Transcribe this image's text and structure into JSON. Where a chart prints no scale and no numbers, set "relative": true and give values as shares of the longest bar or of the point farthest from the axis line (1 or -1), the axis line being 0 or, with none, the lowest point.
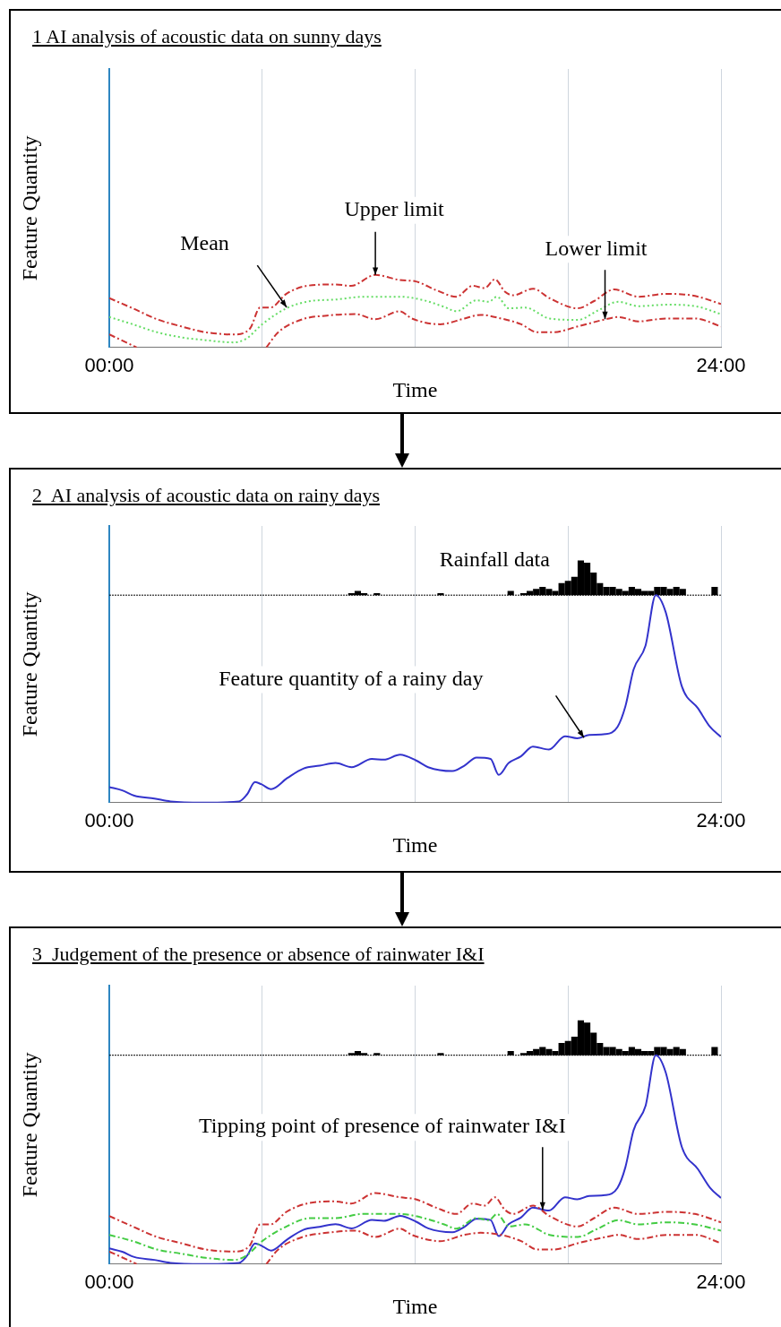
{
  "chart_data": [
    {
      "type": "line",
      "title": "1 AI analysis of acoustic data on sunny days",
      "xlabel": "Time",
      "ylabel": "Feature Quantity",
      "relative": true,
      "xlim": [
        0,
        24
      ],
      "xticks": [
        {
          "value": 0,
          "label": "00:00"
        },
        {
          "value": 6,
          "label": null
        },
        {
          "value": 12,
          "label": null
        },
        {
          "value": 18,
          "label": null
        },
        {
          "value": 24,
          "label": "24:00"
        }
      ],
      "grid": "x",
      "marker": "none",
      "annotations": [
        "Mean",
        {
          "text": "Upper limit",
          "x": 10.44,
          "y": 1.0
        },
        {
          "text": "Lower limit",
          "x": 19.45,
          "y": 0.39
        }
      ],
      "series": [
        {
          "color": "#cc3333",
          "line_style": "dashed",
          "x": [
            0,
            0.92,
            1.87,
            2.83,
            3.78,
            4.89,
            5.52,
            5.92,
            6.32,
            6.95,
            7.75,
            8.86,
            9.49,
            10.44,
            11.4,
            12.03,
            12.83,
            13.62,
            14.25,
            14.73,
            15.13,
            15.52,
            15.84,
            16.63,
            17.27,
            18.38,
            19.02,
            19.81,
            20.76,
            21.87,
            22.98,
            24
          ],
          "values": [
            0.68,
            0.54,
            0.39,
            0.29,
            0.21,
            0.18,
            0.26,
            0.55,
            0.55,
            0.74,
            0.85,
            0.87,
            0.85,
            1.0,
            0.93,
            0.91,
            0.79,
            0.7,
            0.85,
            0.82,
            0.94,
            0.77,
            0.72,
            0.81,
            0.68,
            0.54,
            0.64,
            0.8,
            0.7,
            0.74,
            0.71,
            0.6
          ]
        },
        {
          "color": "#66dd66",
          "line_style": "dotted",
          "x": [
            0,
            0.92,
            1.87,
            2.83,
            3.78,
            4.89,
            5.37,
            6.0,
            6.95,
            7.9,
            8.86,
            9.97,
            11.4,
            12.35,
            13.14,
            13.62,
            14.41,
            14.89,
            15.21,
            15.68,
            16.32,
            17.27,
            18.38,
            19.17,
            19.97,
            20.76,
            21.87,
            22.98,
            24
          ],
          "values": [
            0.42,
            0.32,
            0.21,
            0.14,
            0.1,
            0.07,
            0.12,
            0.32,
            0.54,
            0.64,
            0.66,
            0.7,
            0.7,
            0.65,
            0.56,
            0.5,
            0.65,
            0.63,
            0.7,
            0.54,
            0.55,
            0.4,
            0.38,
            0.51,
            0.63,
            0.57,
            0.59,
            0.57,
            0.46
          ]
        },
        {
          "color": "#cc3333",
          "line_style": "dashed",
          "x": [
            0,
            1.08,
            3.5,
            6.16,
            6.63,
            7.59,
            8.54,
            9.65,
            10.44,
            11.4,
            11.87,
            12.98,
            13.94,
            14.57,
            15.37,
            16.16,
            16.79,
            17.43,
            18.38,
            19.49,
            19.97,
            20.76,
            21.87,
            22.98,
            24
          ],
          "values": [
            0.18,
            0,
            null,
            0,
            0.21,
            0.39,
            0.44,
            0.46,
            0.39,
            0.5,
            0.4,
            0.32,
            0.4,
            0.45,
            0.4,
            0.32,
            0.21,
            0.21,
            0.29,
            0.39,
            0.42,
            0.36,
            0.4,
            0.4,
            0.29
          ]
        }
      ]
    },
    {
      "type": "line",
      "title": "2  AI analysis of acoustic data on rainy days",
      "xlabel": "Time",
      "ylabel": "Feature Quantity",
      "relative": true,
      "xlim": [
        0,
        24
      ],
      "xticks": [
        {
          "value": 0,
          "label": "00:00"
        },
        {
          "value": 6,
          "label": null
        },
        {
          "value": 12,
          "label": null
        },
        {
          "value": 18,
          "label": null
        },
        {
          "value": 24,
          "label": "24:00"
        }
      ],
      "grid": "x",
      "marker": "none",
      "annotations": [
        "Rainfall data",
        "Feature quantity of a rainy day"
      ],
      "series": [
        {
          "type": "bar",
          "axis": "y2",
          "color": "#000000",
          "x": [
            9.5,
            9.75,
            10,
            10.5,
            13,
            15.75,
            16.25,
            16.5,
            16.75,
            17,
            17.25,
            17.5,
            17.75,
            18,
            18.25,
            18.5,
            18.75,
            19,
            19.25,
            19.5,
            19.75,
            20,
            20.25,
            20.5,
            20.75,
            21,
            21.25,
            21.5,
            21.75,
            22,
            22.25,
            22.5,
            23.75
          ],
          "values": [
            0.06,
            0.12,
            0.06,
            0.06,
            0.06,
            0.12,
            0.06,
            0.12,
            0.18,
            0.24,
            0.18,
            0.12,
            0.35,
            0.41,
            0.53,
            1.0,
            0.94,
            0.65,
            0.35,
            0.24,
            0.24,
            0.18,
            0.12,
            0.24,
            0.18,
            0.12,
            0.12,
            0.24,
            0.24,
            0.18,
            0.24,
            0.18,
            0.24
          ]
        },
        {
          "color": "#3333cc",
          "line_style": "solid",
          "x": [
            0,
            0.51,
            0.98,
            1.77,
            2.4,
            3.67,
            5.09,
            5.4,
            5.72,
            5.96,
            6.35,
            6.98,
            7.61,
            8.25,
            8.88,
            9.51,
            10.3,
            10.77,
            11.41,
            12.04,
            12.51,
            13.46,
            13.93,
            14.41,
            14.96,
            15.28,
            15.67,
            16.15,
            16.62,
            17.25,
            17.88,
            18.36,
            18.83,
            19.46,
            19.94,
            20.25,
            20.57,
            21.04,
            21.44,
            21.83,
            22.46,
            23.1,
            23.57,
            24
          ],
          "values": [
            0.075,
            0.059,
            0.034,
            0.02,
            0.006,
            0,
            0.006,
            0.039,
            0.099,
            0.089,
            0.065,
            0.118,
            0.164,
            0.178,
            0.191,
            0.171,
            0.211,
            0.207,
            0.231,
            0.203,
            0.171,
            0.152,
            0.178,
            0.217,
            0.211,
            0.134,
            0.191,
            0.223,
            0.27,
            0.256,
            0.32,
            0.31,
            0.326,
            0.33,
            0.365,
            0.464,
            0.641,
            0.757,
            1.0,
            0.918,
            0.562,
            0.454,
            0.365,
            0.316
          ]
        }
      ]
    },
    {
      "type": "line",
      "title": "3  Judgement of the presence or absence of rainwater I&I",
      "xlabel": "Time",
      "ylabel": "Feature Quantity",
      "relative": true,
      "xlim": [
        0,
        24
      ],
      "xticks": [
        {
          "value": 0,
          "label": "00:00"
        },
        {
          "value": 6,
          "label": null
        },
        {
          "value": 12,
          "label": null
        },
        {
          "value": 18,
          "label": null
        },
        {
          "value": 24,
          "label": "24:00"
        }
      ],
      "grid": "x",
      "marker": "none",
      "annotations": [
        {
          "text": "Tipping point of presence of rainwater I&I",
          "x": 17.0,
          "y": 0.26
        }
      ],
      "series": [
        {
          "type": "bar",
          "axis": "y2",
          "color": "#000000",
          "x": [
            9.5,
            9.75,
            10,
            10.5,
            13,
            15.75,
            16.25,
            16.5,
            16.75,
            17,
            17.25,
            17.5,
            17.75,
            18,
            18.25,
            18.5,
            18.75,
            19,
            19.25,
            19.5,
            19.75,
            20,
            20.25,
            20.5,
            20.75,
            21,
            21.25,
            21.5,
            21.75,
            22,
            22.25,
            22.5,
            23.75
          ],
          "values": [
            0.06,
            0.12,
            0.06,
            0.06,
            0.06,
            0.12,
            0.06,
            0.12,
            0.18,
            0.24,
            0.18,
            0.12,
            0.35,
            0.41,
            0.53,
            1.0,
            0.94,
            0.65,
            0.35,
            0.24,
            0.24,
            0.18,
            0.12,
            0.24,
            0.18,
            0.12,
            0.12,
            0.24,
            0.24,
            0.18,
            0.24,
            0.18,
            0.24
          ]
        },
        {
          "color": "#cc3333",
          "line_style": "dashed",
          "x": [
            0,
            0.92,
            1.87,
            2.83,
            3.78,
            4.89,
            5.52,
            5.92,
            6.32,
            6.95,
            7.75,
            8.86,
            9.49,
            10.44,
            11.4,
            12.03,
            12.83,
            13.62,
            14.25,
            14.73,
            15.13,
            15.52,
            15.84,
            16.63,
            17.27,
            18.38,
            19.02,
            19.81,
            20.76,
            21.87,
            22.98,
            24
          ],
          "values": [
            0.23,
            0.18,
            0.13,
            0.1,
            0.07,
            0.06,
            0.09,
            0.19,
            0.19,
            0.25,
            0.29,
            0.3,
            0.29,
            0.34,
            0.32,
            0.31,
            0.27,
            0.24,
            0.29,
            0.28,
            0.32,
            0.26,
            0.24,
            0.28,
            0.23,
            0.18,
            0.22,
            0.27,
            0.24,
            0.25,
            0.24,
            0.2
          ]
        },
        {
          "color": "#44cc44",
          "line_style": "dashed",
          "x": [
            0,
            0.92,
            1.87,
            2.83,
            3.78,
            4.89,
            5.37,
            6.0,
            6.95,
            7.9,
            8.86,
            9.97,
            11.4,
            12.35,
            13.14,
            13.62,
            14.41,
            14.89,
            15.21,
            15.68,
            16.32,
            17.27,
            18.38,
            19.17,
            19.97,
            20.76,
            21.87,
            22.98,
            24
          ],
          "values": [
            0.14,
            0.11,
            0.07,
            0.05,
            0.03,
            0.02,
            0.04,
            0.11,
            0.18,
            0.22,
            0.22,
            0.24,
            0.24,
            0.22,
            0.19,
            0.17,
            0.22,
            0.21,
            0.24,
            0.18,
            0.19,
            0.14,
            0.13,
            0.17,
            0.21,
            0.19,
            0.2,
            0.19,
            0.16
          ]
        },
        {
          "color": "#cc3333",
          "line_style": "dashed",
          "x": [
            0,
            1.08,
            3.5,
            6.16,
            6.63,
            7.59,
            8.54,
            9.65,
            10.44,
            11.4,
            11.87,
            12.98,
            13.94,
            14.57,
            15.37,
            16.16,
            16.79,
            17.43,
            18.38,
            19.49,
            19.97,
            20.76,
            21.87,
            22.98,
            24
          ],
          "values": [
            0.06,
            0,
            null,
            0,
            0.07,
            0.13,
            0.15,
            0.16,
            0.13,
            0.17,
            0.14,
            0.11,
            0.14,
            0.15,
            0.14,
            0.11,
            0.07,
            0.07,
            0.1,
            0.13,
            0.14,
            0.12,
            0.14,
            0.14,
            0.1
          ]
        },
        {
          "color": "#3333cc",
          "line_style": "solid",
          "x": [
            0,
            0.51,
            0.98,
            1.77,
            2.4,
            3.67,
            5.09,
            5.4,
            5.72,
            5.96,
            6.35,
            6.98,
            7.61,
            8.25,
            8.88,
            9.51,
            10.3,
            10.77,
            11.41,
            12.04,
            12.51,
            13.46,
            13.93,
            14.41,
            14.96,
            15.28,
            15.67,
            16.15,
            16.62,
            17.25,
            17.88,
            18.36,
            18.83,
            19.46,
            19.94,
            20.25,
            20.57,
            21.04,
            21.44,
            21.83,
            22.46,
            23.1,
            23.57,
            24
          ],
          "values": [
            0.075,
            0.059,
            0.034,
            0.02,
            0.006,
            0,
            0.006,
            0.039,
            0.099,
            0.089,
            0.065,
            0.118,
            0.164,
            0.178,
            0.191,
            0.171,
            0.211,
            0.207,
            0.231,
            0.203,
            0.171,
            0.152,
            0.178,
            0.217,
            0.211,
            0.134,
            0.191,
            0.223,
            0.27,
            0.256,
            0.32,
            0.31,
            0.326,
            0.33,
            0.365,
            0.464,
            0.641,
            0.757,
            1.0,
            0.918,
            0.562,
            0.454,
            0.365,
            0.316
          ]
        }
      ]
    }
  ]
}
